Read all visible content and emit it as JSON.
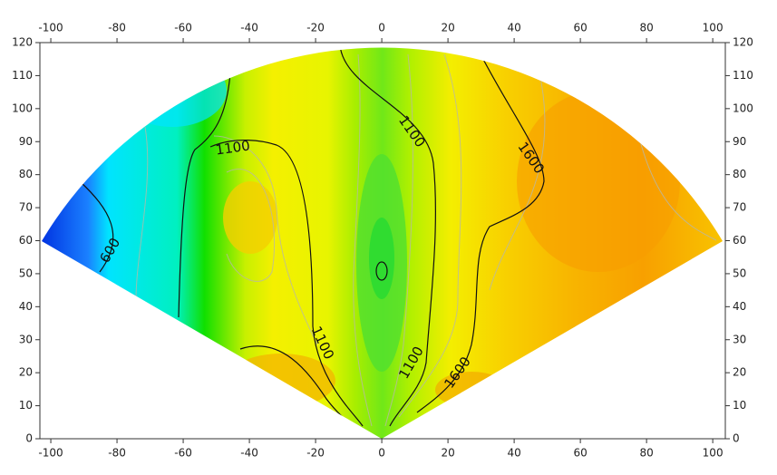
{
  "chart_data": {
    "type": "contour",
    "xlim": [
      -103.3,
      103.8
    ],
    "ylim": [
      0,
      120
    ],
    "xticks": [
      -100,
      -80,
      -60,
      -40,
      -20,
      0,
      20,
      40,
      60,
      80,
      100
    ],
    "yticks": [
      0,
      10,
      20,
      30,
      40,
      50,
      60,
      70,
      80,
      90,
      100,
      110,
      120
    ],
    "contour_labels": [
      {
        "level": 600,
        "x": -82,
        "y": 57
      },
      {
        "level": 1100,
        "x": -45,
        "y": 88
      },
      {
        "level": 1100,
        "x": 9,
        "y": 93
      },
      {
        "level": 1600,
        "x": 45,
        "y": 85
      },
      {
        "level": 1100,
        "x": -18,
        "y": 29
      },
      {
        "level": 1100,
        "x": 9,
        "y": 23
      },
      {
        "level": 1600,
        "x": 23,
        "y": 20
      }
    ]
  }
}
